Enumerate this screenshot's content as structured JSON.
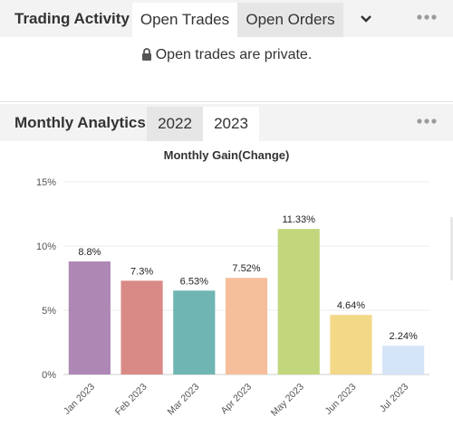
{
  "trading": {
    "title": "Trading Activity",
    "tabs": [
      {
        "label": "Open Trades",
        "active": true
      },
      {
        "label": "Open Orders",
        "active": false
      }
    ],
    "more_icon": "chevron-down-icon",
    "menu_icon": "more-dots-icon",
    "private_message": "Open trades are private.",
    "lock_icon": "lock-icon"
  },
  "analytics": {
    "title": "Monthly Analytics",
    "tabs": [
      {
        "label": "2022",
        "active": false
      },
      {
        "label": "2023",
        "active": true
      }
    ],
    "menu_icon": "more-dots-icon"
  },
  "chart_data": {
    "type": "bar",
    "title": "Monthly Gain(Change)",
    "categories": [
      "Jan 2023",
      "Feb 2023",
      "Mar 2023",
      "Apr 2023",
      "May 2023",
      "Jun 2023",
      "Jul 2023"
    ],
    "values": [
      8.8,
      7.3,
      6.53,
      7.52,
      11.33,
      4.64,
      2.24
    ],
    "value_labels": [
      "8.8%",
      "7.3%",
      "6.53%",
      "7.52%",
      "11.33%",
      "4.64%",
      "2.24%"
    ],
    "colors": [
      "#ae87b5",
      "#d98a87",
      "#6fb5b3",
      "#f6bf9b",
      "#c2d77c",
      "#f3d888",
      "#d5e5f8"
    ],
    "yticks": [
      0,
      5,
      10,
      15
    ],
    "ytick_labels": [
      "0%",
      "5%",
      "10%",
      "15%"
    ],
    "ylim": [
      0,
      15
    ],
    "grid": true,
    "legend": false
  }
}
